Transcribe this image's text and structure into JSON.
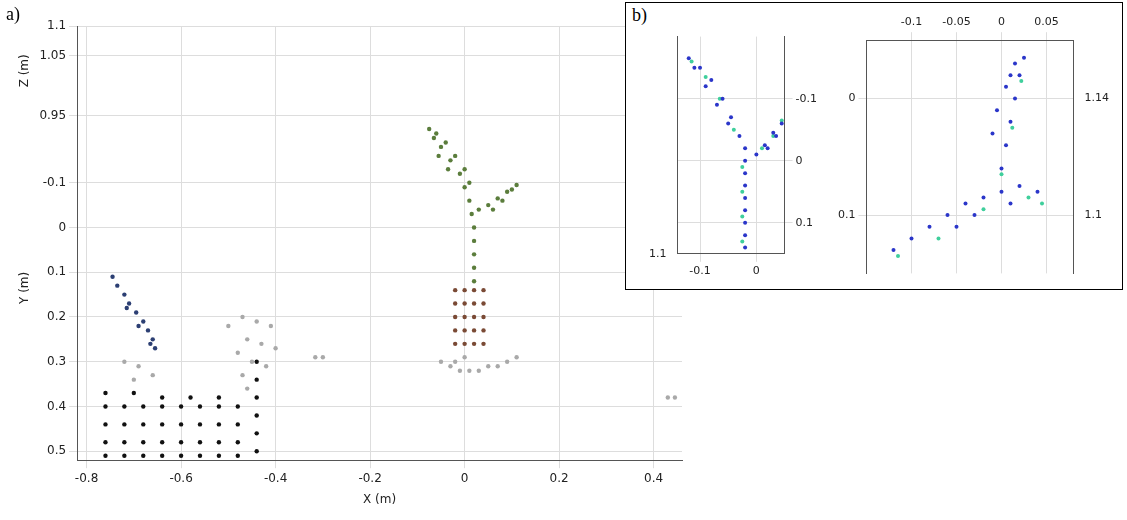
{
  "chart_data": [
    {
      "type": "scatter",
      "panel": "a)",
      "xlabel": "X (m)",
      "ylabel": "Y (m)",
      "y2label": "Z (m)",
      "xlim": [
        -0.82,
        0.46
      ],
      "xticks": [
        -0.8,
        -0.6,
        -0.4,
        -0.2,
        0,
        0.2,
        0.4
      ],
      "ylim": [
        0.52,
        -0.25
      ],
      "yticks": [
        -0.1,
        0,
        0.1,
        0.2,
        0.3,
        0.4,
        0.5
      ],
      "y2lim": [
        0.95,
        1.1
      ],
      "y2ticks": [
        0.95,
        1.05,
        1.1
      ],
      "grid": true,
      "marker": "circle",
      "series": [
        {
          "color": "#5b7d3c",
          "points": [
            [
              0.02,
              0.12
            ],
            [
              0.02,
              0.09
            ],
            [
              0.02,
              0.06
            ],
            [
              0.02,
              0.03
            ],
            [
              0.02,
              0
            ],
            [
              0.015,
              -0.03
            ],
            [
              0.01,
              -0.06
            ],
            [
              0,
              -0.09
            ],
            [
              -0.01,
              -0.12
            ],
            [
              -0.03,
              -0.15
            ],
            [
              -0.05,
              -0.18
            ],
            [
              -0.065,
              -0.2
            ],
            [
              -0.075,
              -0.22
            ],
            [
              -0.06,
              -0.21
            ],
            [
              -0.04,
              -0.19
            ],
            [
              -0.02,
              -0.16
            ],
            [
              0,
              -0.13
            ],
            [
              0.01,
              -0.1
            ],
            [
              -0.055,
              -0.16
            ],
            [
              -0.035,
              -0.13
            ],
            [
              0.03,
              -0.04
            ],
            [
              0.05,
              -0.05
            ],
            [
              0.07,
              -0.065
            ],
            [
              0.09,
              -0.08
            ],
            [
              0.11,
              -0.095
            ],
            [
              0.1,
              -0.085
            ],
            [
              0.08,
              -0.06
            ],
            [
              0.06,
              -0.04
            ]
          ]
        },
        {
          "color": "#7a4a35",
          "points": [
            [
              -0.02,
              0.14
            ],
            [
              0,
              0.14
            ],
            [
              0.02,
              0.14
            ],
            [
              0.04,
              0.14
            ],
            [
              -0.02,
              0.17
            ],
            [
              0,
              0.17
            ],
            [
              0.02,
              0.17
            ],
            [
              0.04,
              0.17
            ],
            [
              -0.02,
              0.2
            ],
            [
              0,
              0.2
            ],
            [
              0.02,
              0.2
            ],
            [
              0.04,
              0.2
            ],
            [
              -0.02,
              0.23
            ],
            [
              0,
              0.23
            ],
            [
              0.02,
              0.23
            ],
            [
              0.04,
              0.23
            ],
            [
              -0.02,
              0.26
            ],
            [
              0,
              0.26
            ],
            [
              0.02,
              0.26
            ],
            [
              0.04,
              0.26
            ]
          ]
        },
        {
          "color": "#a9a9a9",
          "points": [
            [
              -0.05,
              0.3
            ],
            [
              -0.03,
              0.31
            ],
            [
              -0.01,
              0.32
            ],
            [
              0.01,
              0.32
            ],
            [
              0.03,
              0.32
            ],
            [
              0.05,
              0.31
            ],
            [
              0.07,
              0.31
            ],
            [
              0.09,
              0.3
            ],
            [
              0.11,
              0.29
            ],
            [
              0,
              0.29
            ],
            [
              -0.02,
              0.3
            ],
            [
              -0.316,
              0.29
            ],
            [
              -0.3,
              0.29
            ],
            [
              0.43,
              0.38
            ],
            [
              0.445,
              0.38
            ],
            [
              -0.5,
              0.22
            ],
            [
              -0.47,
              0.2
            ],
            [
              -0.44,
              0.21
            ],
            [
              -0.41,
              0.22
            ],
            [
              -0.46,
              0.25
            ],
            [
              -0.43,
              0.26
            ],
            [
              -0.4,
              0.27
            ],
            [
              -0.48,
              0.28
            ],
            [
              -0.45,
              0.3
            ],
            [
              -0.42,
              0.31
            ],
            [
              -0.72,
              0.3
            ],
            [
              -0.69,
              0.31
            ],
            [
              -0.66,
              0.33
            ],
            [
              -0.7,
              0.34
            ],
            [
              -0.47,
              0.33
            ],
            [
              -0.46,
              0.36
            ]
          ]
        },
        {
          "color": "#2c3f73",
          "points": [
            [
              -0.745,
              0.11
            ],
            [
              -0.735,
              0.13
            ],
            [
              -0.72,
              0.15
            ],
            [
              -0.71,
              0.17
            ],
            [
              -0.695,
              0.19
            ],
            [
              -0.68,
              0.21
            ],
            [
              -0.67,
              0.23
            ],
            [
              -0.66,
              0.25
            ],
            [
              -0.655,
              0.27
            ],
            [
              -0.665,
              0.26
            ],
            [
              -0.69,
              0.22
            ],
            [
              -0.715,
              0.18
            ]
          ]
        },
        {
          "color": "#111111",
          "points": [
            [
              -0.76,
              0.4
            ],
            [
              -0.72,
              0.4
            ],
            [
              -0.68,
              0.4
            ],
            [
              -0.64,
              0.4
            ],
            [
              -0.6,
              0.4
            ],
            [
              -0.56,
              0.4
            ],
            [
              -0.52,
              0.4
            ],
            [
              -0.48,
              0.4
            ],
            [
              -0.76,
              0.44
            ],
            [
              -0.72,
              0.44
            ],
            [
              -0.68,
              0.44
            ],
            [
              -0.64,
              0.44
            ],
            [
              -0.6,
              0.44
            ],
            [
              -0.56,
              0.44
            ],
            [
              -0.52,
              0.44
            ],
            [
              -0.48,
              0.44
            ],
            [
              -0.76,
              0.48
            ],
            [
              -0.72,
              0.48
            ],
            [
              -0.68,
              0.48
            ],
            [
              -0.64,
              0.48
            ],
            [
              -0.6,
              0.48
            ],
            [
              -0.56,
              0.48
            ],
            [
              -0.52,
              0.48
            ],
            [
              -0.48,
              0.48
            ],
            [
              -0.76,
              0.51
            ],
            [
              -0.72,
              0.51
            ],
            [
              -0.68,
              0.51
            ],
            [
              -0.64,
              0.51
            ],
            [
              -0.6,
              0.51
            ],
            [
              -0.56,
              0.51
            ],
            [
              -0.52,
              0.51
            ],
            [
              -0.48,
              0.51
            ],
            [
              -0.44,
              0.3
            ],
            [
              -0.44,
              0.34
            ],
            [
              -0.44,
              0.38
            ],
            [
              -0.44,
              0.42
            ],
            [
              -0.44,
              0.46
            ],
            [
              -0.44,
              0.5
            ],
            [
              -0.76,
              0.37
            ],
            [
              -0.7,
              0.37
            ],
            [
              -0.64,
              0.38
            ],
            [
              -0.58,
              0.38
            ],
            [
              -0.52,
              0.38
            ]
          ]
        }
      ]
    },
    {
      "type": "scatter",
      "panel": "b)",
      "xlim": [
        -0.14,
        0.05
      ],
      "xticks": [
        -0.1,
        0
      ],
      "ylim": [
        0.15,
        -0.2
      ],
      "yticks": [
        -0.1,
        0,
        0.1
      ],
      "y2lim": [
        1.1,
        1.2
      ],
      "y2ticks": [
        1.1
      ],
      "grid": true,
      "marker": "circle",
      "series": [
        {
          "color": "#2b36c9",
          "points": [
            [
              -0.02,
              0.14
            ],
            [
              -0.02,
              0.12
            ],
            [
              -0.02,
              0.1
            ],
            [
              -0.02,
              0.08
            ],
            [
              -0.02,
              0.06
            ],
            [
              -0.02,
              0.04
            ],
            [
              -0.02,
              0.02
            ],
            [
              -0.02,
              0
            ],
            [
              -0.02,
              -0.02
            ],
            [
              -0.03,
              -0.04
            ],
            [
              -0.045,
              -0.07
            ],
            [
              -0.06,
              -0.1
            ],
            [
              -0.08,
              -0.13
            ],
            [
              -0.1,
              -0.15
            ],
            [
              -0.12,
              -0.165
            ],
            [
              -0.11,
              -0.15
            ],
            [
              -0.09,
              -0.12
            ],
            [
              -0.07,
              -0.09
            ],
            [
              -0.05,
              -0.06
            ],
            [
              0,
              -0.01
            ],
            [
              0.015,
              -0.025
            ],
            [
              0.03,
              -0.045
            ],
            [
              0.045,
              -0.06
            ],
            [
              0.035,
              -0.04
            ],
            [
              0.02,
              -0.02
            ]
          ]
        },
        {
          "color": "#3fcf9c",
          "points": [
            [
              -0.025,
              0.13
            ],
            [
              -0.025,
              0.09
            ],
            [
              -0.025,
              0.05
            ],
            [
              -0.025,
              0.01
            ],
            [
              -0.04,
              -0.05
            ],
            [
              -0.065,
              -0.1
            ],
            [
              -0.09,
              -0.135
            ],
            [
              -0.115,
              -0.16
            ],
            [
              0.01,
              -0.02
            ],
            [
              0.03,
              -0.04
            ],
            [
              0.045,
              -0.065
            ]
          ]
        }
      ]
    },
    {
      "type": "scatter",
      "xlim": [
        -0.15,
        0.08
      ],
      "xticks": [
        -0.1,
        -0.05,
        0,
        0.05
      ],
      "ylim": [
        0.15,
        -0.05
      ],
      "yticks": [
        0,
        0.1
      ],
      "y2lim": [
        1.08,
        1.16
      ],
      "y2ticks": [
        1.1,
        1.14
      ],
      "grid": true,
      "marker": "circle",
      "series": [
        {
          "color": "#2b36c9",
          "points": [
            [
              0,
              0.06
            ],
            [
              0.005,
              0.04
            ],
            [
              0.01,
              0.02
            ],
            [
              0.015,
              0
            ],
            [
              0.02,
              -0.02
            ],
            [
              0.025,
              -0.035
            ],
            [
              0.015,
              -0.03
            ],
            [
              0.005,
              -0.01
            ],
            [
              -0.005,
              0.01
            ],
            [
              -0.01,
              0.03
            ],
            [
              0.01,
              -0.02
            ],
            [
              -0.12,
              0.13
            ],
            [
              -0.1,
              0.12
            ],
            [
              -0.08,
              0.11
            ],
            [
              -0.06,
              0.1
            ],
            [
              -0.04,
              0.09
            ],
            [
              -0.02,
              0.085
            ],
            [
              0,
              0.08
            ],
            [
              0.02,
              0.075
            ],
            [
              0.04,
              0.08
            ],
            [
              -0.05,
              0.11
            ],
            [
              -0.03,
              0.1
            ],
            [
              0.01,
              0.09
            ]
          ]
        },
        {
          "color": "#3fcf9c",
          "points": [
            [
              0,
              0.065
            ],
            [
              0.012,
              0.025
            ],
            [
              0.022,
              -0.015
            ],
            [
              -0.115,
              0.135
            ],
            [
              -0.07,
              0.12
            ],
            [
              -0.02,
              0.095
            ],
            [
              0.03,
              0.085
            ],
            [
              0.045,
              0.09
            ]
          ]
        }
      ]
    }
  ]
}
